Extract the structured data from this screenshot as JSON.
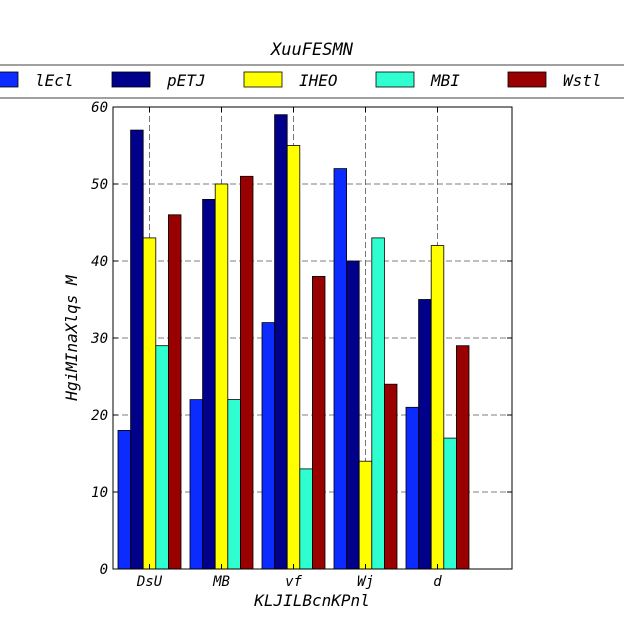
{
  "chart_data": {
    "type": "bar",
    "title": "XuuFESMN",
    "xlabel": "KLJILBcnKPnl",
    "ylabel": "HgiMInaXlqs M",
    "categories": [
      "DsU",
      "MB",
      "vf",
      "Wj",
      "d"
    ],
    "ylim": [
      0,
      60
    ],
    "yticks": [
      "0",
      "10",
      "20",
      "30",
      "40",
      "50",
      "60"
    ],
    "grid": true,
    "legend_position": "top",
    "series": [
      {
        "name": "lEcl",
        "color": "#0b2bff",
        "values": [
          18,
          22,
          32,
          52,
          21
        ]
      },
      {
        "name": "pETJ",
        "color": "#00008b",
        "values": [
          57,
          48,
          59,
          40,
          35
        ]
      },
      {
        "name": "IHEO",
        "color": "#ffff00",
        "values": [
          43,
          50,
          55,
          14,
          42
        ]
      },
      {
        "name": "MBI",
        "color": "#2fffd0",
        "values": [
          29,
          22,
          13,
          43,
          17
        ]
      },
      {
        "name": "Wstl",
        "color": "#990000",
        "values": [
          46,
          51,
          38,
          24,
          29
        ]
      }
    ]
  }
}
